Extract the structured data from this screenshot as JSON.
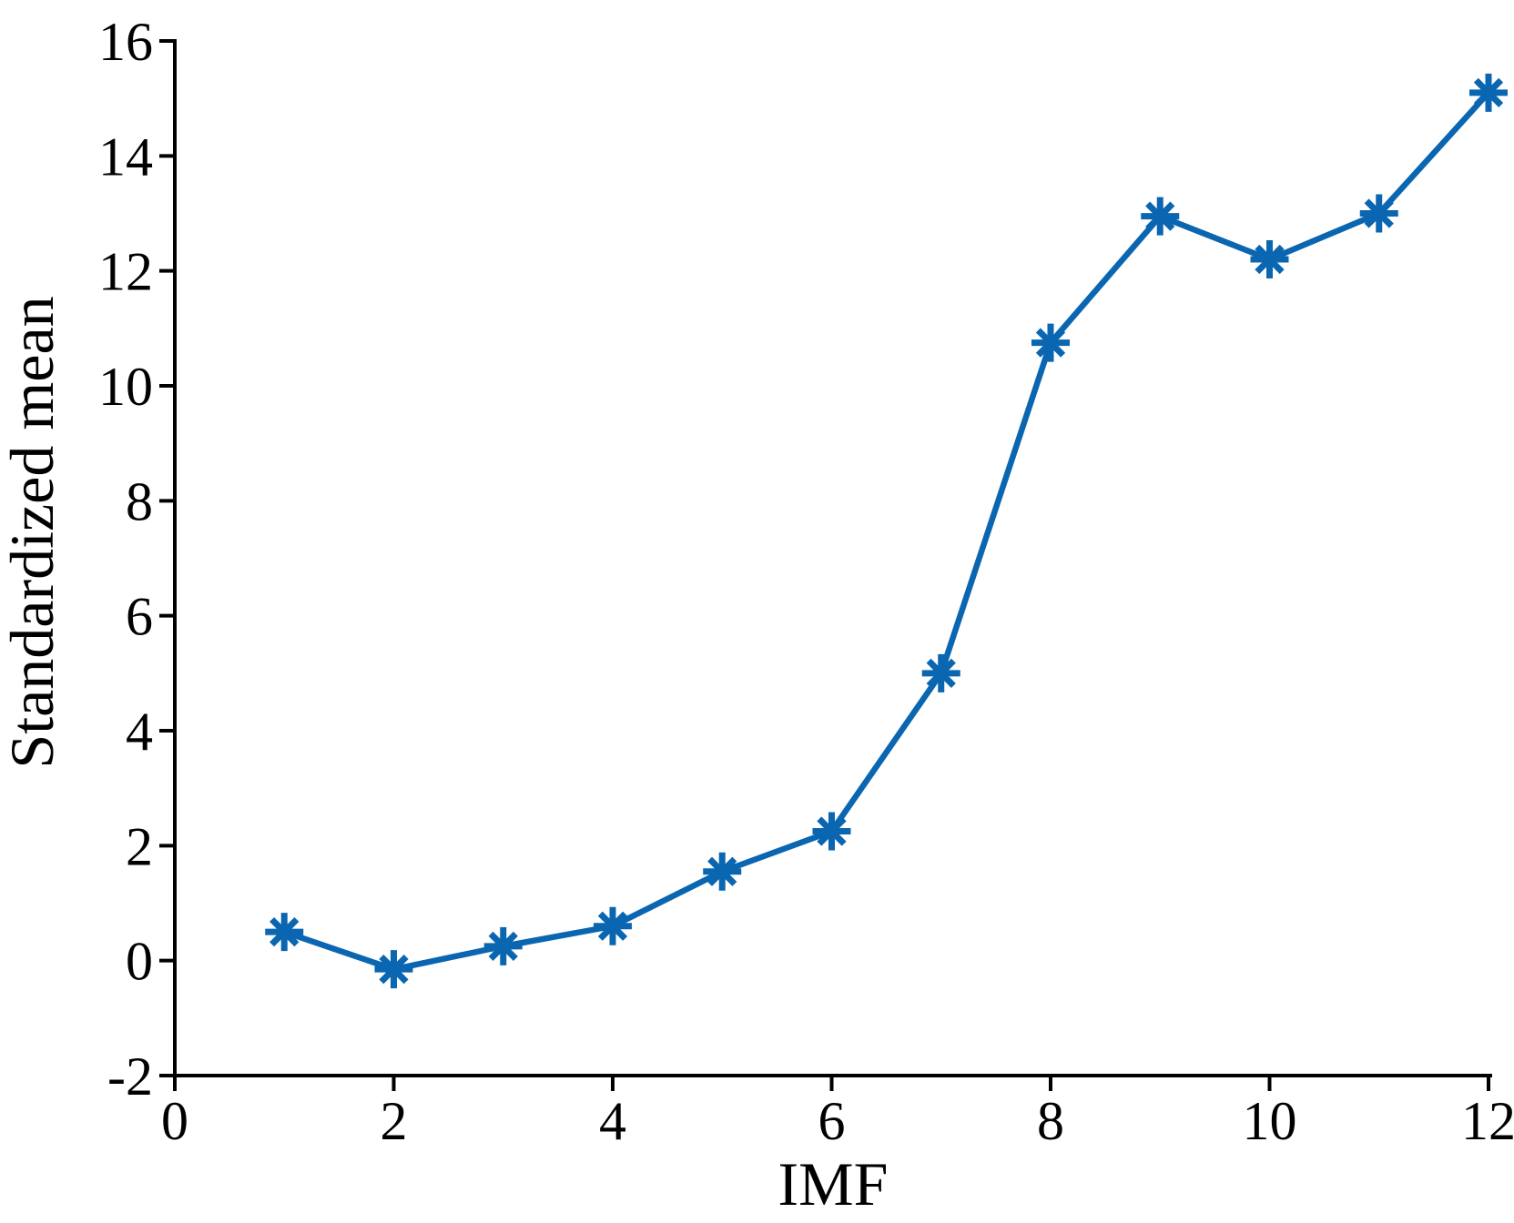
{
  "figure": {
    "background": "#ffffff",
    "axis_color": "#000000"
  },
  "chart_data": {
    "type": "line",
    "title": "",
    "xlabel": "IMF",
    "ylabel": "Standardized mean",
    "xlim": [
      0,
      12
    ],
    "ylim": [
      -2,
      16
    ],
    "xticks": [
      0,
      2,
      4,
      6,
      8,
      10,
      12
    ],
    "yticks": [
      -2,
      0,
      2,
      4,
      6,
      8,
      10,
      12,
      14,
      16
    ],
    "grid": false,
    "legend": "none",
    "series": [
      {
        "name": "Standardized mean",
        "color": "#0a66b0",
        "marker": "asterisk",
        "x": [
          1,
          2,
          3,
          4,
          5,
          6,
          7,
          8,
          9,
          10,
          11,
          12
        ],
        "y": [
          0.5,
          -0.15,
          0.25,
          0.6,
          1.55,
          2.25,
          5.0,
          10.75,
          12.95,
          12.2,
          13.0,
          15.1
        ]
      }
    ]
  }
}
